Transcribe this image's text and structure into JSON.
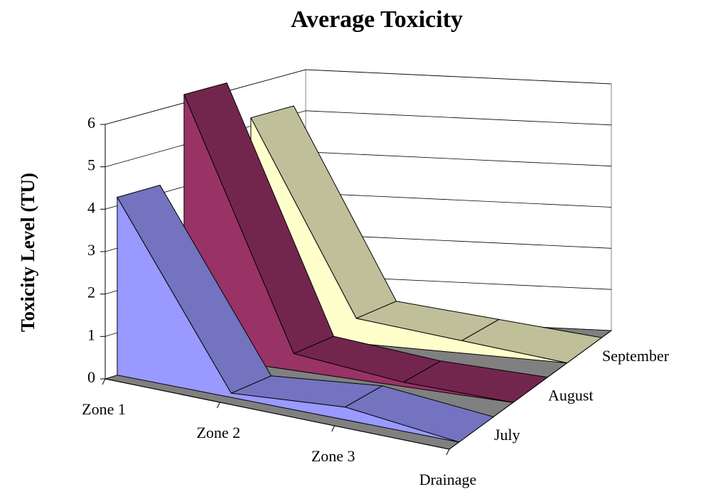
{
  "chart_data": {
    "type": "area3d",
    "title": "Average Toxicity",
    "y_label": "Toxicity Level (TU)",
    "categories": [
      "Zone 1",
      "Zone 2",
      "Zone 3",
      "Drainage"
    ],
    "series": [
      {
        "name": "July",
        "color": "#9999ff",
        "values": [
          4.2,
          0.1,
          0.3,
          0
        ]
      },
      {
        "name": "August",
        "color": "#993366",
        "values": [
          6.2,
          0.4,
          0.1,
          0
        ]
      },
      {
        "name": "September",
        "color": "#ffffcc",
        "values": [
          5.2,
          0.6,
          0.3,
          0
        ]
      }
    ],
    "ylim": [
      0,
      6
    ],
    "yticks": [
      0,
      1,
      2,
      3,
      4,
      5,
      6
    ],
    "grid": true
  }
}
